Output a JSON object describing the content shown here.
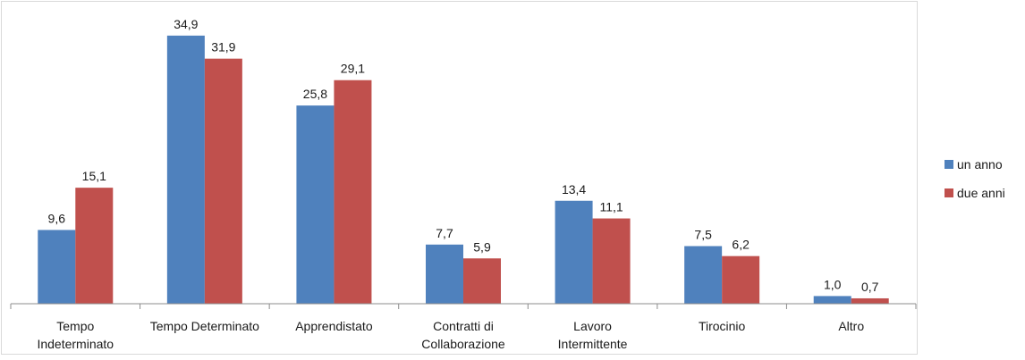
{
  "chart_data": {
    "type": "bar",
    "categories": [
      [
        "Tempo",
        "Indeterminato"
      ],
      [
        "Tempo Determinato"
      ],
      [
        "Apprendistato"
      ],
      [
        "Contratti di",
        "Collaborazione"
      ],
      [
        "Lavoro",
        "Intermittente"
      ],
      [
        "Tirocinio"
      ],
      [
        "Altro"
      ]
    ],
    "series": [
      {
        "name": "un anno",
        "color": "#4f81bd",
        "values": [
          9.6,
          34.9,
          25.8,
          7.7,
          13.4,
          7.5,
          1.0
        ],
        "labels": [
          "9,6",
          "34,9",
          "25,8",
          "7,7",
          "13,4",
          "7,5",
          "1,0"
        ]
      },
      {
        "name": "due anni",
        "color": "#c0504d",
        "values": [
          15.1,
          31.9,
          29.1,
          5.9,
          11.1,
          6.2,
          0.7
        ],
        "labels": [
          "15,1",
          "31,9",
          "29,1",
          "5,9",
          "11,1",
          "6,2",
          "0,7"
        ]
      }
    ],
    "title": "",
    "xlabel": "",
    "ylabel": "",
    "ylim": [
      0,
      36
    ],
    "grid": false,
    "legend": "right"
  }
}
